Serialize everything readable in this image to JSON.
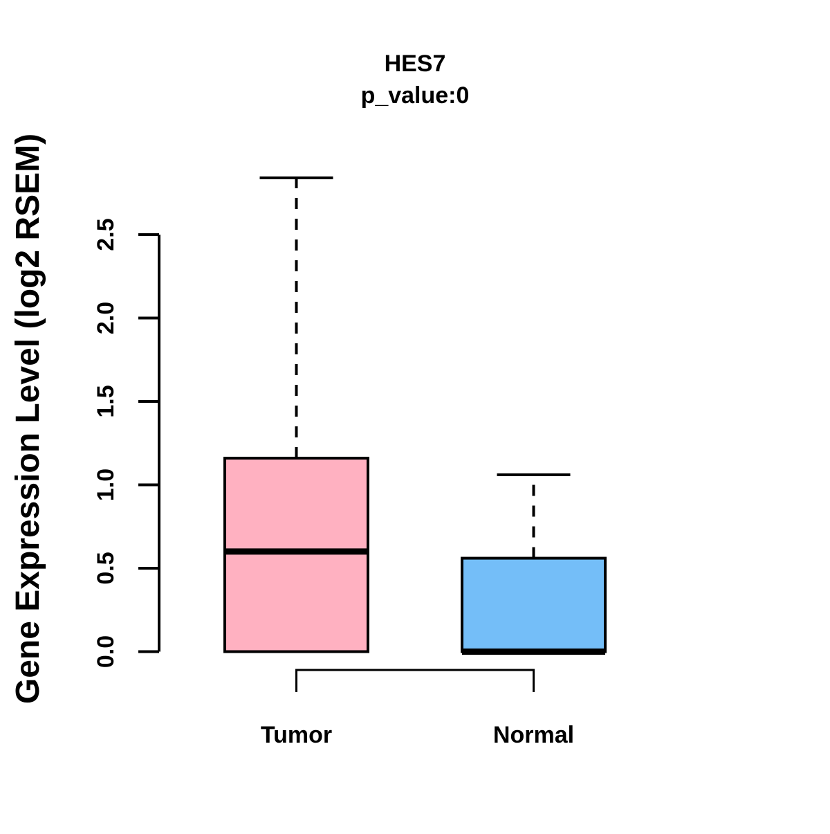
{
  "title": "HES7",
  "subtitle": "p_value:0",
  "y_axis": {
    "label": "Gene Expression Level (log2 RSEM)",
    "tick_labels": [
      "0.0",
      "0.5",
      "1.0",
      "1.5",
      "2.0",
      "2.5"
    ]
  },
  "x_axis": {
    "categories": [
      "Tumor",
      "Normal"
    ]
  },
  "colors": {
    "tumor_box_fill": "#FFB1C1",
    "normal_box_fill": "#74BEF8",
    "stroke": "#000000",
    "background": "#FFFFFF"
  },
  "chart_data": {
    "type": "boxplot",
    "title": "HES7",
    "subtitle": "p_value:0",
    "p_value": 0,
    "gene": "HES7",
    "xlabel": "",
    "ylabel": "Gene Expression Level (log2 RSEM)",
    "categories": [
      "Tumor",
      "Normal"
    ],
    "series": [
      {
        "name": "Tumor",
        "color": "#FFB1C1",
        "whisker_low": 0.0,
        "q1": 0.0,
        "median": 0.6,
        "q3": 1.16,
        "whisker_high": 2.84
      },
      {
        "name": "Normal",
        "color": "#74BEF8",
        "whisker_low": 0.0,
        "q1": 0.0,
        "median": 0.0,
        "q3": 0.56,
        "whisker_high": 1.06
      }
    ],
    "ylim": [
      0.0,
      2.5
    ],
    "yticks": [
      0.0,
      0.5,
      1.0,
      1.5,
      2.0,
      2.5
    ],
    "grid": false,
    "legend": "none",
    "comparison_bracket": {
      "from": "Tumor",
      "to": "Normal"
    }
  }
}
